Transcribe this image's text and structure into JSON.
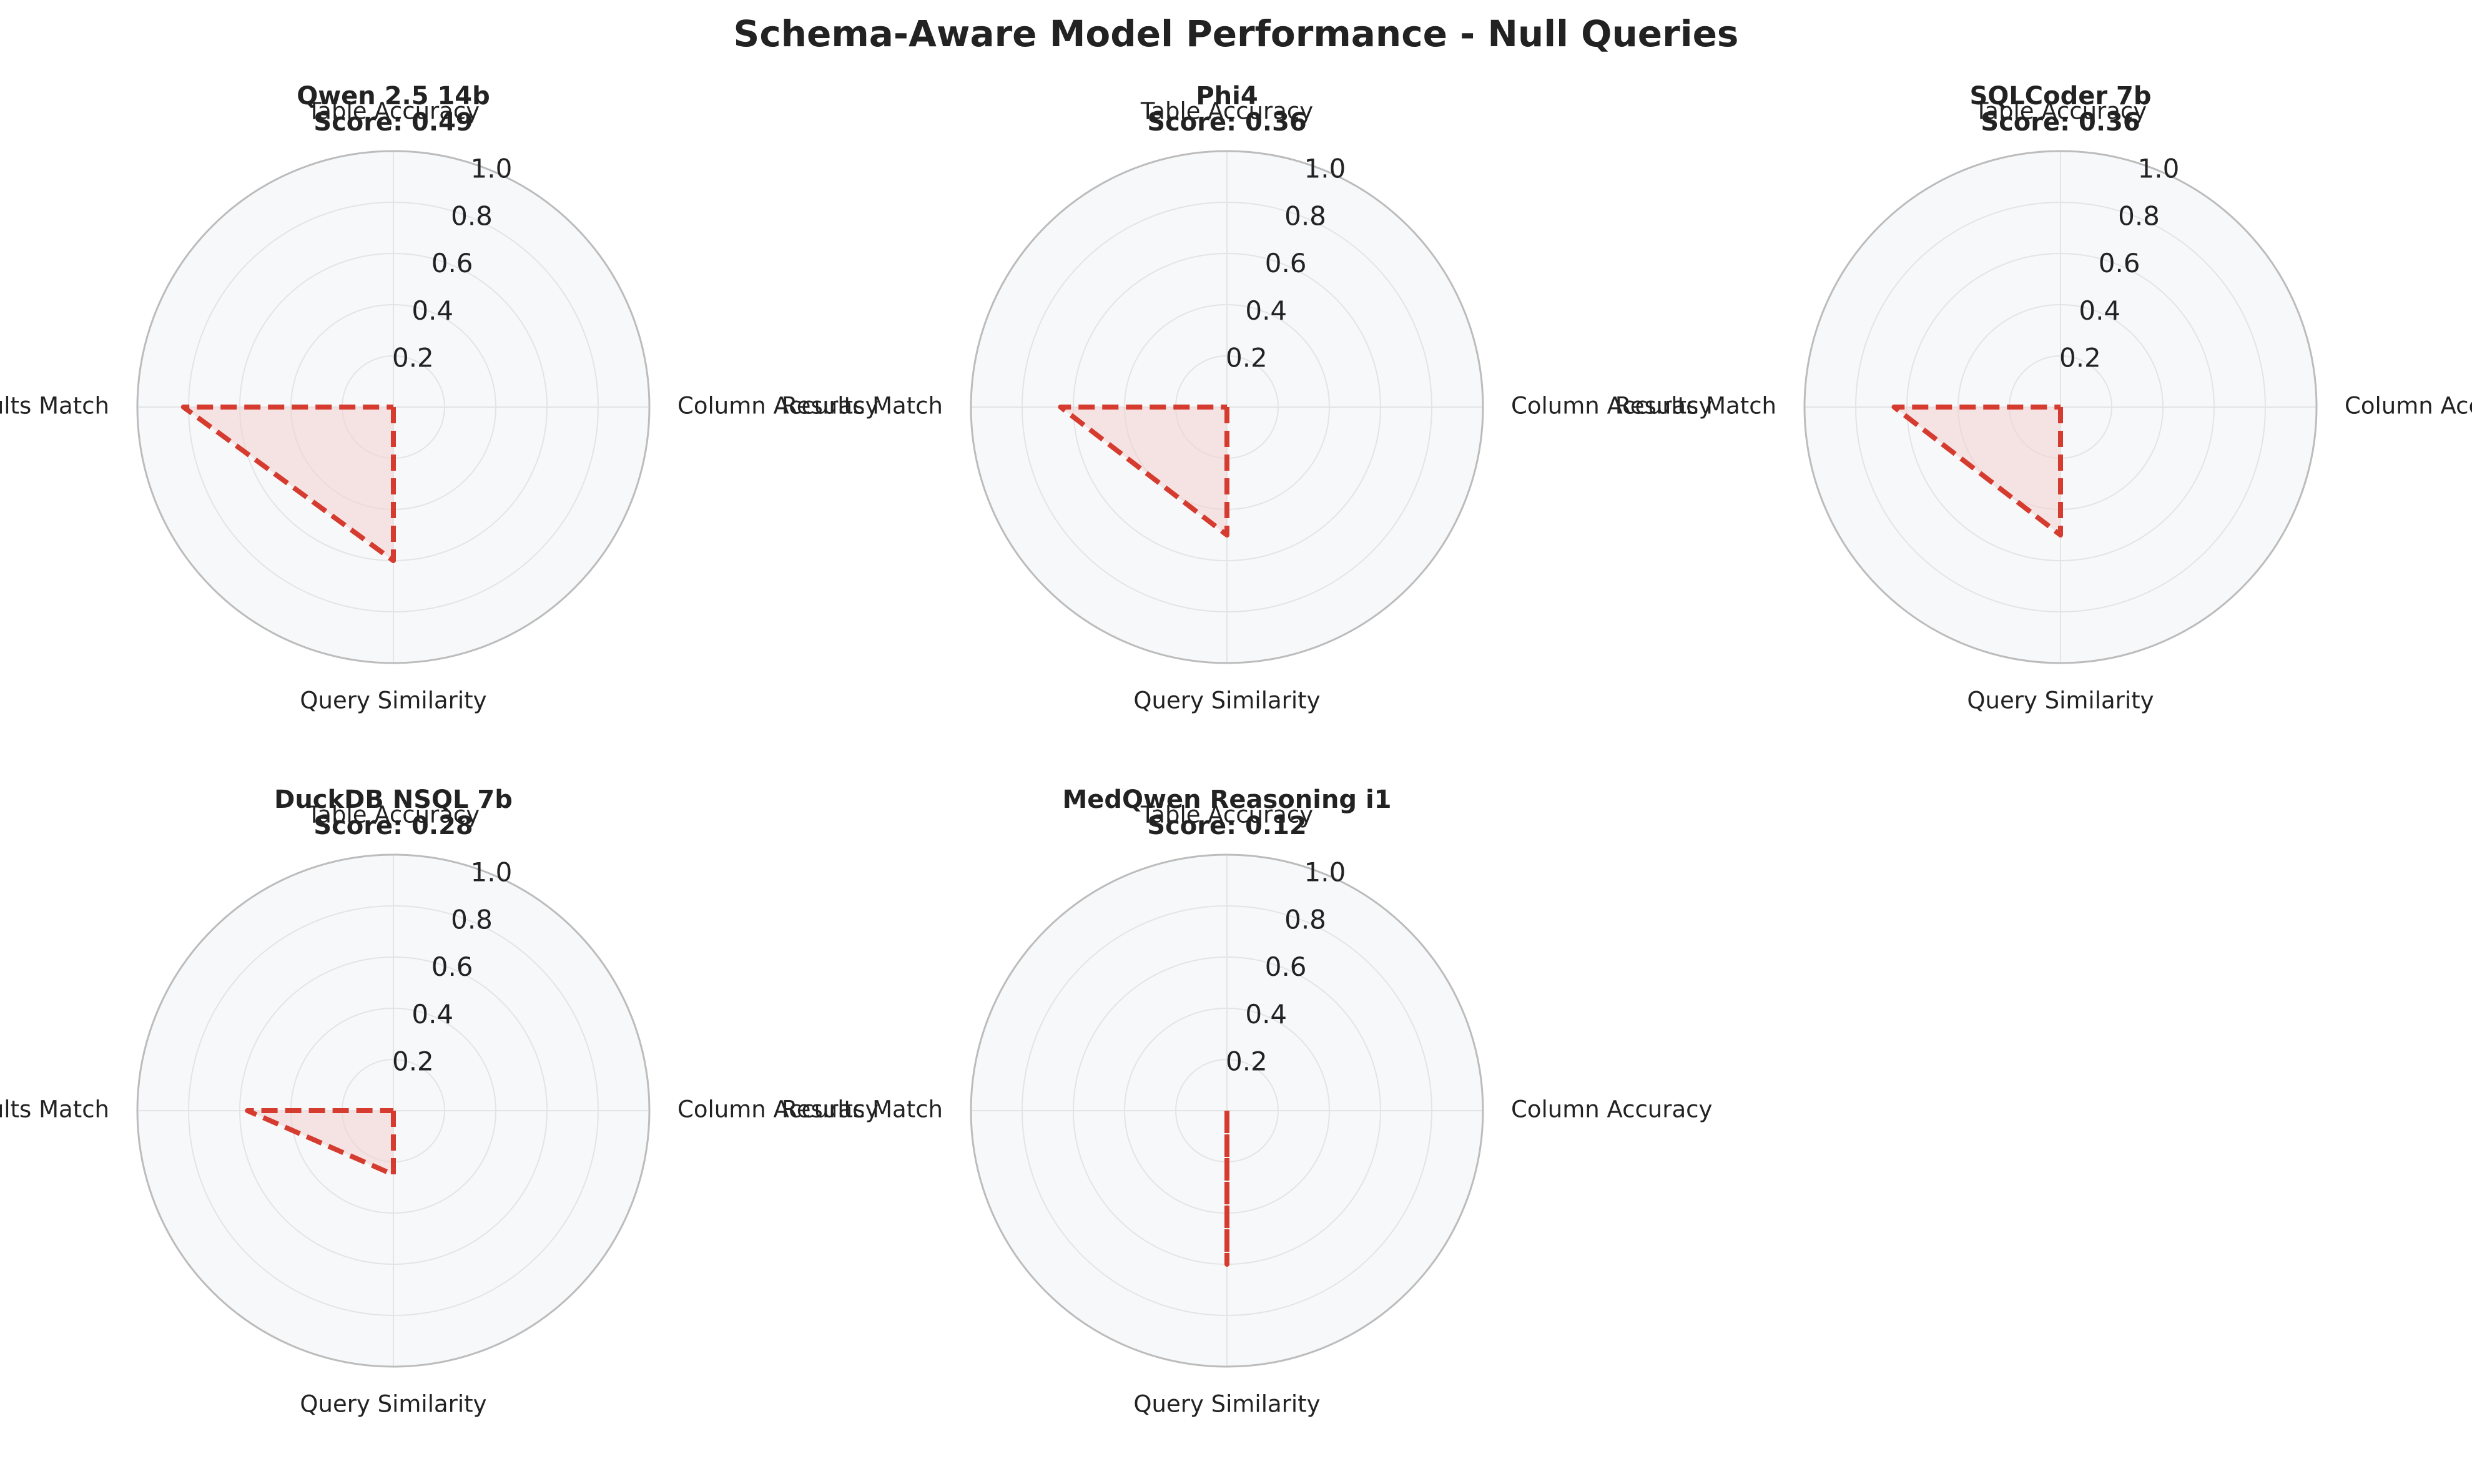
{
  "figure": {
    "title": "Schema-Aware Model Performance - Null Queries"
  },
  "chart_data": [
    {
      "type": "radar",
      "model": "Qwen 2.5 14b",
      "score_label": "Score: 0.49",
      "axes": [
        "Table Accuracy",
        "Column Accuracy",
        "Query Similarity",
        "Results Match"
      ],
      "values": [
        0.0,
        0.0,
        0.6,
        0.82
      ],
      "rticks": [
        "0.2",
        "0.4",
        "0.6",
        "0.8",
        "1.0"
      ],
      "rlim": [
        0,
        1
      ],
      "line_style": "dashed",
      "color": "#d63b2f"
    },
    {
      "type": "radar",
      "model": "Phi4",
      "score_label": "Score: 0.36",
      "axes": [
        "Table Accuracy",
        "Column Accuracy",
        "Query Similarity",
        "Results Match"
      ],
      "values": [
        0.0,
        0.0,
        0.5,
        0.65
      ],
      "rticks": [
        "0.2",
        "0.4",
        "0.6",
        "0.8",
        "1.0"
      ],
      "rlim": [
        0,
        1
      ],
      "line_style": "dashed",
      "color": "#d63b2f"
    },
    {
      "type": "radar",
      "model": "SQLCoder 7b",
      "score_label": "Score: 0.36",
      "axes": [
        "Table Accuracy",
        "Column Accuracy",
        "Query Similarity",
        "Results Match"
      ],
      "values": [
        0.0,
        0.0,
        0.5,
        0.65
      ],
      "rticks": [
        "0.2",
        "0.4",
        "0.6",
        "0.8",
        "1.0"
      ],
      "rlim": [
        0,
        1
      ],
      "line_style": "dashed",
      "color": "#d63b2f"
    },
    {
      "type": "radar",
      "model": "DuckDB NSQL 7b",
      "score_label": "Score: 0.28",
      "axes": [
        "Table Accuracy",
        "Column Accuracy",
        "Query Similarity",
        "Results Match"
      ],
      "values": [
        0.0,
        0.0,
        0.25,
        0.57
      ],
      "rticks": [
        "0.2",
        "0.4",
        "0.6",
        "0.8",
        "1.0"
      ],
      "rlim": [
        0,
        1
      ],
      "line_style": "dashed",
      "color": "#d63b2f"
    },
    {
      "type": "radar",
      "model": "MedQwen Reasoning i1",
      "score_label": "Score: 0.12",
      "axes": [
        "Table Accuracy",
        "Column Accuracy",
        "Query Similarity",
        "Results Match"
      ],
      "values": [
        0.0,
        0.0,
        0.6,
        0.0
      ],
      "rticks": [
        "0.2",
        "0.4",
        "0.6",
        "0.8",
        "1.0"
      ],
      "rlim": [
        0,
        1
      ],
      "line_style": "dashed",
      "color": "#d63b2f"
    }
  ],
  "colors": {
    "line": "#d63b2f",
    "fill": "#f3d2cf",
    "plot_bg": "#f7f8f9",
    "grid": "#e3e4e6",
    "frame": "#bcbcbc"
  }
}
